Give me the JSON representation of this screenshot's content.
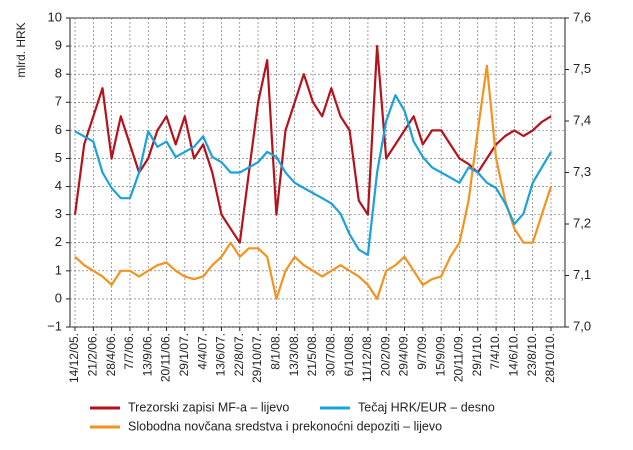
{
  "chart_data": {
    "type": "line",
    "y_label": "mlrd. HRK",
    "categories": [
      "14/12/05.",
      null,
      "21/2/06.",
      null,
      "28/4/06.",
      null,
      "7/7/06.",
      null,
      "13/9/06.",
      null,
      "20/11/06.",
      null,
      "29/1/07.",
      null,
      "4/4/07.",
      null,
      "13/6/07.",
      null,
      "22/8/07.",
      null,
      "29/10/07.",
      null,
      "8/1/08.",
      null,
      "13/3/08.",
      null,
      "21/5/08.",
      null,
      "30/7/08.",
      null,
      "6/10/08.",
      null,
      "11/12/08.",
      null,
      "20/2/09.",
      null,
      "29/4/09.",
      null,
      "9/7/09.",
      null,
      "15/9/09.",
      null,
      "20/11/09.",
      null,
      "29/1/10.",
      null,
      "7/4/10.",
      null,
      "14/6/10.",
      null,
      "23/8/10.",
      null,
      "28/10/10."
    ],
    "series": [
      {
        "name": "Trezorski zapisi MF-a – lijevo",
        "color": "#b5121b",
        "values": [
          3.0,
          5.5,
          6.5,
          7.5,
          5.0,
          6.5,
          5.5,
          4.5,
          5.0,
          6.0,
          6.5,
          5.5,
          6.5,
          5.0,
          5.5,
          4.5,
          3.0,
          2.5,
          2.0,
          4.5,
          7.0,
          8.5,
          3.0,
          6.0,
          7.0,
          8.0,
          7.0,
          6.5,
          7.5,
          6.5,
          6.0,
          3.5,
          3.0,
          9.0,
          5.0,
          5.5,
          6.0,
          6.5,
          5.5,
          6.0,
          6.0,
          5.5,
          5.0,
          4.8,
          4.5,
          5.0,
          5.5,
          5.8,
          6.0,
          5.8,
          6.0,
          6.3,
          6.5
        ]
      },
      {
        "name": "Tečaj HRK/EUR – desno",
        "color": "#1ba1db",
        "axis": "y2",
        "values": [
          7.38,
          7.37,
          7.36,
          7.3,
          7.27,
          7.25,
          7.25,
          7.3,
          7.38,
          7.35,
          7.36,
          7.33,
          7.34,
          7.35,
          7.37,
          7.33,
          7.32,
          7.3,
          7.3,
          7.31,
          7.32,
          7.34,
          7.33,
          7.3,
          7.28,
          7.27,
          7.26,
          7.25,
          7.24,
          7.22,
          7.18,
          7.15,
          7.14,
          7.3,
          7.4,
          7.45,
          7.42,
          7.36,
          7.33,
          7.31,
          7.3,
          7.29,
          7.28,
          7.31,
          7.3,
          7.28,
          7.27,
          7.24,
          7.2,
          7.22,
          7.28,
          7.31,
          7.34
        ]
      },
      {
        "name": "Slobodna novčana sredstva i prekonoćni depoziti – lijevo",
        "color": "#f5921e",
        "values": [
          1.5,
          1.2,
          1.0,
          0.8,
          0.5,
          1.0,
          1.0,
          0.8,
          1.0,
          1.2,
          1.3,
          1.0,
          0.8,
          0.7,
          0.8,
          1.2,
          1.5,
          2.0,
          1.5,
          1.8,
          1.8,
          1.5,
          0.0,
          1.0,
          1.5,
          1.2,
          1.0,
          0.8,
          1.0,
          1.2,
          1.0,
          0.8,
          0.5,
          0.0,
          1.0,
          1.2,
          1.5,
          1.0,
          0.5,
          0.7,
          0.8,
          1.5,
          2.0,
          3.5,
          6.0,
          8.3,
          5.0,
          3.5,
          2.5,
          2.0,
          2.0,
          3.0,
          4.0
        ]
      }
    ],
    "ylim": [
      -1,
      10
    ],
    "yticks": [
      {
        "value": -1,
        "label": "−1"
      },
      0,
      1,
      2,
      3,
      4,
      5,
      6,
      7,
      8,
      9,
      10
    ],
    "y2lim": [
      7.0,
      7.6
    ],
    "y2ticks": [
      {
        "value": 7.0,
        "label": "7,0"
      },
      {
        "value": 7.1,
        "label": "7,1"
      },
      {
        "value": 7.2,
        "label": "7,2"
      },
      {
        "value": 7.3,
        "label": "7,3"
      },
      {
        "value": 7.4,
        "label": "7,4"
      },
      {
        "value": 7.5,
        "label": "7,5"
      },
      {
        "value": 7.6,
        "label": "7,6"
      }
    ],
    "grid": true
  }
}
